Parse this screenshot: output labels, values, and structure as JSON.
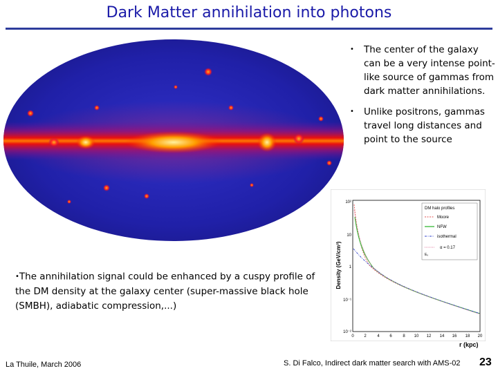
{
  "slide": {
    "title": "Dark Matter annihilation into photons",
    "bullets": [
      "The center of the galaxy can be a very intense point-like source of gammas from dark matter annihilations.",
      "Unlike positrons, gammas travel long distances and  point to the source"
    ],
    "bottom_text": "The annihilation signal could be enhanced by a cuspy profile  of the DM density at the galaxy center (super-massive black hole (SMBH), adiabatic compression,...)",
    "bullet_glyph": "•"
  },
  "figure_profile": {
    "ylabel": "Density (GeV/cm³)",
    "xlabel": "r (kpc)",
    "y_ticks": [
      "10²",
      "10",
      "1",
      "10⁻¹",
      "10⁻²"
    ],
    "x_ticks": [
      "0",
      "2",
      "4",
      "6",
      "8",
      "10",
      "12",
      "14",
      "16",
      "18",
      "20"
    ],
    "legend_title": "DM halo profiles",
    "legend": [
      {
        "name": "Moore",
        "color": "#e05050"
      },
      {
        "name": "NFW",
        "color": "#35b835"
      },
      {
        "name": "isothermal",
        "color": "#3344cc"
      },
      {
        "name": "α = 0.17",
        "color": "#e07aa0"
      }
    ],
    "legend_last_prefix": "Eᵥ"
  },
  "footer": {
    "left": "La Thuile, March 2006",
    "center": "S. Di Falco, Indirect dark matter search with AMS-02",
    "page_number": "23"
  }
}
